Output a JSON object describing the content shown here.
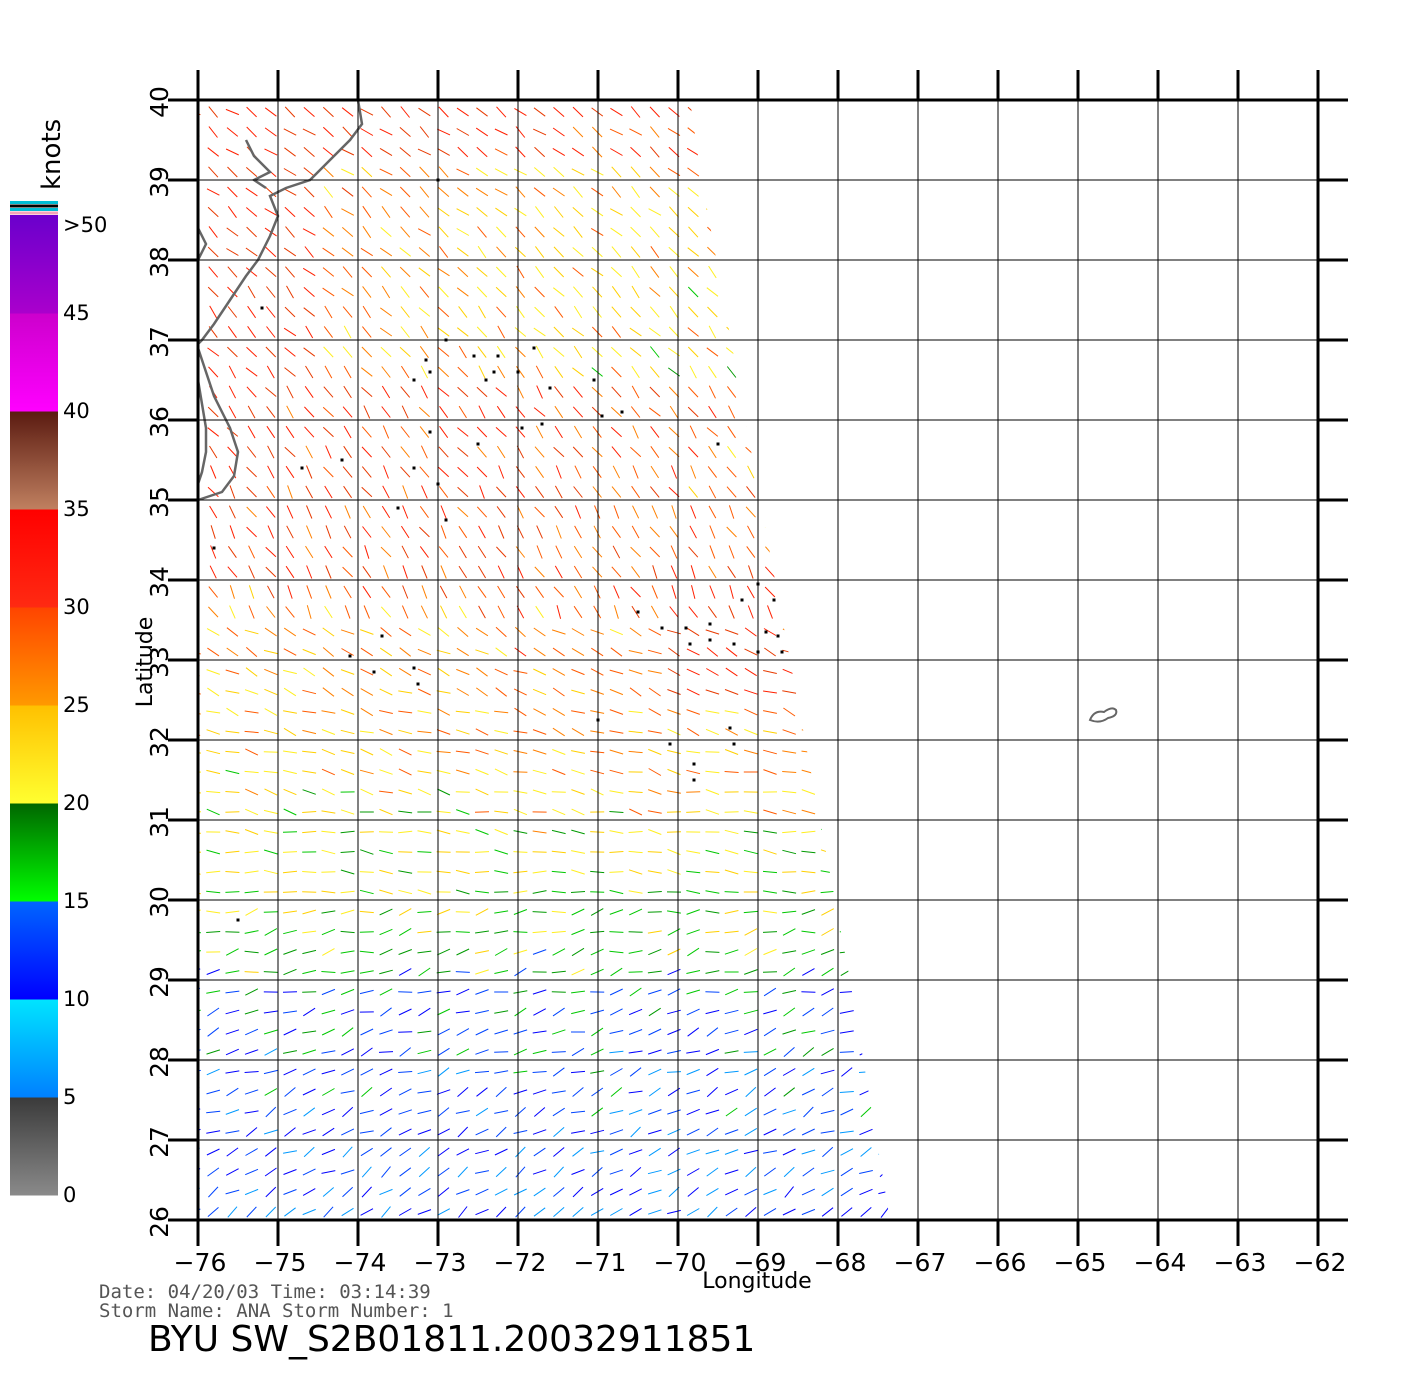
{
  "map": {
    "x_axis": {
      "title": "Longitude",
      "ticks": [
        -76,
        -75,
        -74,
        -73,
        -72,
        -71,
        -70,
        -69,
        -68,
        -67,
        -66,
        -65,
        -64,
        -63,
        -62
      ],
      "tick_labels": [
        "−76",
        "−75",
        "−74",
        "−73",
        "−72",
        "−71",
        "−70",
        "−69",
        "−68",
        "−67",
        "−66",
        "−65",
        "−64",
        "−63",
        "−62"
      ]
    },
    "y_axis": {
      "title": "Latitude",
      "ticks": [
        26,
        27,
        28,
        29,
        30,
        31,
        32,
        33,
        34,
        35,
        36,
        37,
        38,
        39,
        40
      ],
      "tick_labels": [
        "26",
        "27",
        "28",
        "29",
        "30",
        "31",
        "32",
        "33",
        "34",
        "35",
        "36",
        "37",
        "38",
        "39",
        "40"
      ]
    },
    "extent": {
      "lon": [
        -76,
        -62
      ],
      "lat": [
        26,
        40
      ]
    },
    "grid": true,
    "swath": {
      "lon_west": -76,
      "lon_east_north": -70.2,
      "lon_east_south": -67.4
    },
    "colors": {
      "coastline": "#666666",
      "grid": "#000000",
      "rain_flag": "#000000"
    }
  },
  "colorbar": {
    "unit_label": "knots",
    "labels": [
      ">50",
      "45",
      "40",
      "35",
      "30",
      "25",
      "20",
      "15",
      "10",
      "5",
      "0"
    ],
    "bins": [
      {
        "from": 0,
        "to": 5,
        "top": "#3a3a3a",
        "bottom": "#8a8a8a"
      },
      {
        "from": 5,
        "to": 10,
        "top": "#00e5ff",
        "bottom": "#0080ff"
      },
      {
        "from": 10,
        "to": 15,
        "top": "#0066ff",
        "bottom": "#0000ff"
      },
      {
        "from": 15,
        "to": 20,
        "top": "#006600",
        "bottom": "#00ff00"
      },
      {
        "from": 20,
        "to": 25,
        "top": "#ffc000",
        "bottom": "#ffff30"
      },
      {
        "from": 25,
        "to": 30,
        "top": "#ff4400",
        "bottom": "#ff9900"
      },
      {
        "from": 30,
        "to": 35,
        "top": "#ff0000",
        "bottom": "#ff2a12"
      },
      {
        "from": 35,
        "to": 40,
        "top": "#5a1a10",
        "bottom": "#c08060"
      },
      {
        "from": 40,
        "to": 45,
        "top": "#cc00cc",
        "bottom": "#ff00ff"
      },
      {
        "from": 45,
        "to": 50,
        "top": "#6a00cc",
        "bottom": "#aa00cc"
      }
    ],
    "top_stripe_colors": [
      "#00bcd4",
      "#000000",
      "#00bcd4",
      "#f4a6b8"
    ]
  },
  "info": {
    "date_line": "Date: 04/20/03   Time: 03:14:39",
    "storm_line": "Storm  Name: ANA   Storm  Number: 1",
    "title": "BYU  SW_S2B01811.20032911851"
  },
  "islands": [
    {
      "name": "",
      "lon": -64.7,
      "lat": 32.3
    }
  ]
}
